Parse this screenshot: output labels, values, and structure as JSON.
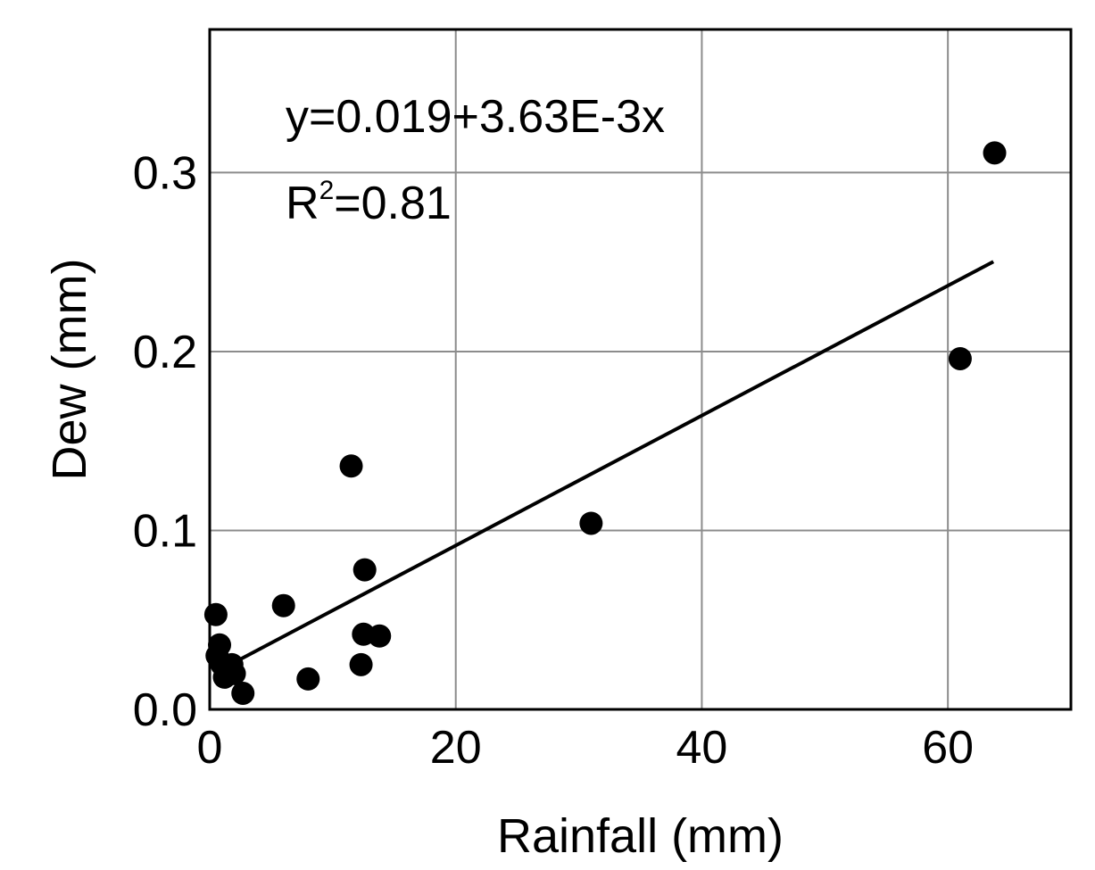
{
  "chart_data": {
    "type": "scatter",
    "xlabel": "Rainfall (mm)",
    "ylabel": "Dew (mm)",
    "xlim": [
      0,
      70
    ],
    "ylim": [
      0,
      0.38
    ],
    "xticks": [
      0,
      20,
      40,
      60
    ],
    "yticks": [
      0.0,
      0.1,
      0.2,
      0.3
    ],
    "xtick_labels": [
      "0",
      "20",
      "40",
      "60"
    ],
    "ytick_labels": [
      "0.0",
      "0.1",
      "0.2",
      "0.3"
    ],
    "grid": true,
    "legend": "none",
    "points": [
      {
        "x": 0.5,
        "y": 0.053
      },
      {
        "x": 0.6,
        "y": 0.03
      },
      {
        "x": 0.8,
        "y": 0.036
      },
      {
        "x": 1.0,
        "y": 0.025
      },
      {
        "x": 1.2,
        "y": 0.018
      },
      {
        "x": 1.5,
        "y": 0.02
      },
      {
        "x": 1.8,
        "y": 0.025
      },
      {
        "x": 2.0,
        "y": 0.02
      },
      {
        "x": 2.7,
        "y": 0.009
      },
      {
        "x": 6.0,
        "y": 0.058
      },
      {
        "x": 8.0,
        "y": 0.017
      },
      {
        "x": 11.5,
        "y": 0.136
      },
      {
        "x": 12.3,
        "y": 0.025
      },
      {
        "x": 12.5,
        "y": 0.042
      },
      {
        "x": 12.6,
        "y": 0.078
      },
      {
        "x": 13.8,
        "y": 0.041
      },
      {
        "x": 31.0,
        "y": 0.104
      },
      {
        "x": 61.0,
        "y": 0.196
      },
      {
        "x": 63.8,
        "y": 0.311
      }
    ],
    "fit_line": {
      "intercept": 0.019,
      "slope": 0.00363,
      "x_range": [
        2.0,
        63.7
      ]
    },
    "annotations": {
      "equation": "y=0.019+3.63E-3x",
      "r_squared_prefix": "R",
      "r_squared_superscript": "2",
      "r_squared_value": "=0.81"
    }
  }
}
